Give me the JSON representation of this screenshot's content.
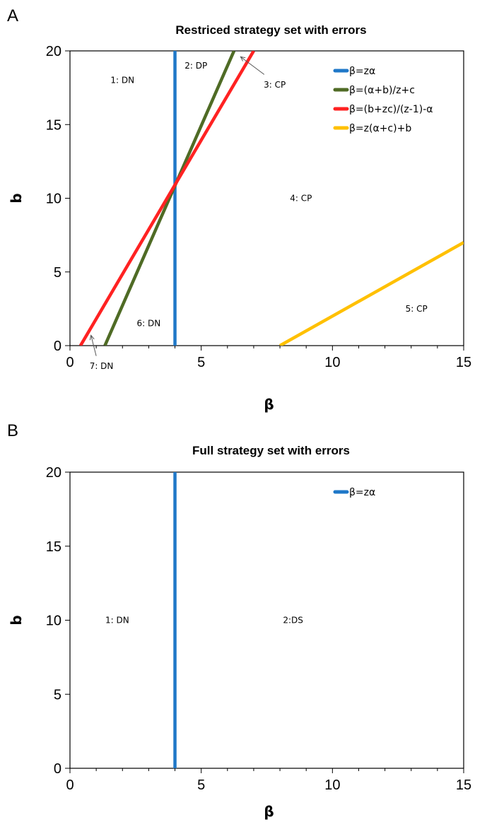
{
  "chart_data": [
    {
      "type": "line",
      "panel": "A",
      "title": "Restriced strategy set with errors",
      "xlabel": "β",
      "ylabel": "b",
      "xlim": [
        0,
        15
      ],
      "ylim": [
        0,
        20
      ],
      "xticks": [
        "0",
        "5",
        "10",
        "15"
      ],
      "yticks": [
        "0",
        "5",
        "10",
        "15",
        "20"
      ],
      "grid": false,
      "legend_position": "top-right",
      "series": [
        {
          "name": "β=zα",
          "color": "#1f78c8",
          "x": [
            4,
            4
          ],
          "y": [
            0,
            20
          ]
        },
        {
          "name": "β=(α+b)/z+c",
          "color": "#4f6b25",
          "x": [
            1.33,
            6.25
          ],
          "y": [
            0,
            20
          ]
        },
        {
          "name": "β=(b+zc)/(z-1)-α",
          "color": "#ff2222",
          "x": [
            0.4,
            7.0
          ],
          "y": [
            0,
            20
          ]
        },
        {
          "name": "β=z(α+c)+b",
          "color": "#ffc000",
          "x": [
            8.0,
            15.0
          ],
          "y": [
            0,
            7
          ]
        }
      ],
      "regions": [
        {
          "label": "1: DN",
          "x": 2.0,
          "y": 18.0
        },
        {
          "label": "2: DP",
          "x": 4.8,
          "y": 19.0
        },
        {
          "label": "3: CP",
          "x": 7.8,
          "y": 17.7
        },
        {
          "label": "4: CP",
          "x": 8.8,
          "y": 10.0
        },
        {
          "label": "5: CP",
          "x": 13.2,
          "y": 2.5
        },
        {
          "label": "6: DN",
          "x": 3.0,
          "y": 1.5
        },
        {
          "label": "7: DN",
          "x": 1.2,
          "y": -1.4
        }
      ],
      "annotations": [
        {
          "target": "3: CP",
          "arrow_from": [
            7.4,
            18.4
          ],
          "arrow_to": [
            6.5,
            19.6
          ]
        },
        {
          "target": "7: DN",
          "arrow_from": [
            1.0,
            -0.7
          ],
          "arrow_to": [
            0.8,
            0.7
          ]
        }
      ]
    },
    {
      "type": "line",
      "panel": "B",
      "title": "Full strategy set with errors",
      "xlabel": "β",
      "ylabel": "b",
      "xlim": [
        0,
        15
      ],
      "ylim": [
        0,
        20
      ],
      "xticks": [
        "0",
        "5",
        "10",
        "15"
      ],
      "yticks": [
        "0",
        "5",
        "10",
        "15",
        "20"
      ],
      "grid": false,
      "legend_position": "top-right",
      "series": [
        {
          "name": "β=zα",
          "color": "#1f78c8",
          "x": [
            4,
            4
          ],
          "y": [
            0,
            20
          ]
        }
      ],
      "regions": [
        {
          "label": "1: DN",
          "x": 1.8,
          "y": 10.0
        },
        {
          "label": "2:DS",
          "x": 8.5,
          "y": 10.0
        }
      ]
    }
  ]
}
